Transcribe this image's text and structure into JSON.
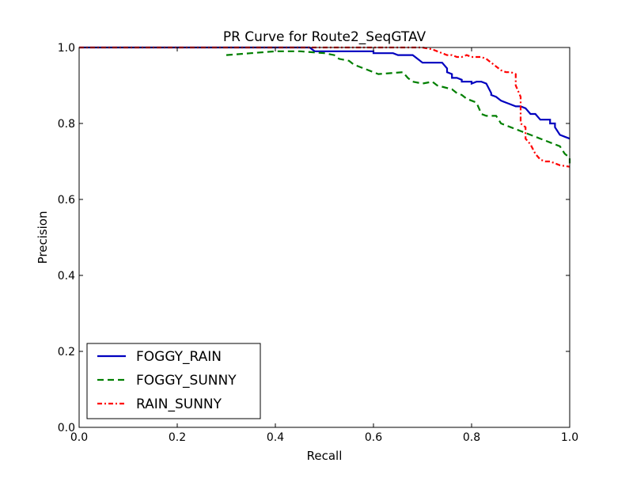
{
  "chart_data": {
    "type": "line",
    "title": "PR Curve for Route2_SeqGTAV",
    "xlabel": "Recall",
    "ylabel": "Precision",
    "xlim": [
      0.0,
      1.0
    ],
    "ylim": [
      0.0,
      1.0
    ],
    "xticks": [
      "0.0",
      "0.2",
      "0.4",
      "0.6",
      "0.8",
      "1.0"
    ],
    "yticks": [
      "0.0",
      "0.2",
      "0.4",
      "0.6",
      "0.8",
      "1.0"
    ],
    "grid": false,
    "legend_position": "lower-left",
    "series": [
      {
        "name": "FOGGY_RAIN",
        "color": "#0000bf",
        "style": "solid",
        "x": [
          0.0,
          0.47,
          0.48,
          0.5,
          0.6,
          0.6,
          0.64,
          0.65,
          0.68,
          0.69,
          0.7,
          0.72,
          0.74,
          0.75,
          0.75,
          0.76,
          0.76,
          0.77,
          0.78,
          0.78,
          0.8,
          0.8,
          0.81,
          0.82,
          0.83,
          0.84,
          0.84,
          0.85,
          0.86,
          0.87,
          0.88,
          0.89,
          0.9,
          0.91,
          0.92,
          0.93,
          0.94,
          0.96,
          0.96,
          0.97,
          0.97,
          0.98,
          0.99,
          1.0
        ],
        "y": [
          1.0,
          1.0,
          0.99,
          0.99,
          0.99,
          0.985,
          0.985,
          0.98,
          0.98,
          0.97,
          0.96,
          0.96,
          0.96,
          0.945,
          0.935,
          0.93,
          0.92,
          0.92,
          0.915,
          0.91,
          0.91,
          0.905,
          0.91,
          0.91,
          0.905,
          0.88,
          0.875,
          0.87,
          0.86,
          0.855,
          0.85,
          0.845,
          0.845,
          0.84,
          0.825,
          0.825,
          0.81,
          0.81,
          0.8,
          0.8,
          0.79,
          0.77,
          0.765,
          0.76
        ]
      },
      {
        "name": "FOGGY_SUNNY",
        "color": "#007f00",
        "style": "dashed",
        "x": [
          0.3,
          0.35,
          0.4,
          0.45,
          0.5,
          0.52,
          0.53,
          0.55,
          0.56,
          0.58,
          0.6,
          0.61,
          0.66,
          0.67,
          0.68,
          0.7,
          0.72,
          0.73,
          0.76,
          0.77,
          0.78,
          0.79,
          0.8,
          0.81,
          0.82,
          0.83,
          0.84,
          0.85,
          0.86,
          0.87,
          0.88,
          0.89,
          0.9,
          0.92,
          0.93,
          0.95,
          0.97,
          0.98,
          0.99,
          1.0,
          1.0
        ],
        "y": [
          0.98,
          0.985,
          0.99,
          0.99,
          0.985,
          0.98,
          0.97,
          0.965,
          0.955,
          0.945,
          0.935,
          0.93,
          0.935,
          0.92,
          0.91,
          0.905,
          0.91,
          0.9,
          0.89,
          0.88,
          0.875,
          0.865,
          0.86,
          0.855,
          0.825,
          0.82,
          0.82,
          0.82,
          0.8,
          0.795,
          0.79,
          0.785,
          0.78,
          0.77,
          0.765,
          0.755,
          0.745,
          0.74,
          0.72,
          0.71,
          0.695
        ]
      },
      {
        "name": "RAIN_SUNNY",
        "color": "#ff0000",
        "style": "dashdot",
        "x": [
          0.0,
          0.7,
          0.72,
          0.73,
          0.74,
          0.75,
          0.76,
          0.77,
          0.78,
          0.79,
          0.8,
          0.81,
          0.82,
          0.83,
          0.84,
          0.85,
          0.86,
          0.87,
          0.88,
          0.89,
          0.89,
          0.9,
          0.9,
          0.91,
          0.91,
          0.92,
          0.93,
          0.94,
          0.95,
          0.96,
          0.97,
          0.98,
          0.99,
          1.0
        ],
        "y": [
          1.0,
          1.0,
          0.995,
          0.99,
          0.985,
          0.98,
          0.98,
          0.975,
          0.975,
          0.98,
          0.975,
          0.975,
          0.975,
          0.97,
          0.96,
          0.95,
          0.94,
          0.935,
          0.935,
          0.93,
          0.9,
          0.87,
          0.8,
          0.79,
          0.76,
          0.745,
          0.72,
          0.705,
          0.7,
          0.7,
          0.695,
          0.69,
          0.688,
          0.686
        ]
      }
    ]
  }
}
